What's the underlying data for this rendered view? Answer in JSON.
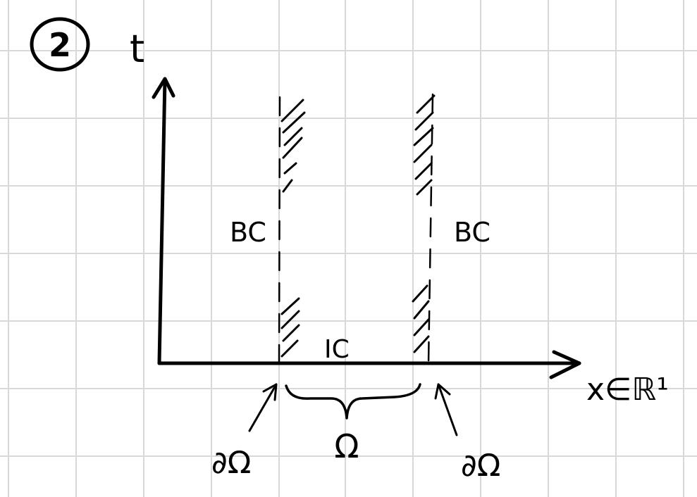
{
  "step_number": "2",
  "axes": {
    "vertical_label": "t",
    "horizontal_label": "x∈ℝ¹"
  },
  "labels": {
    "left_boundary_condition": "BC",
    "right_boundary_condition": "BC",
    "initial_condition": "IC",
    "domain": "Ω",
    "left_boundary": "∂Ω",
    "right_boundary": "∂Ω"
  }
}
